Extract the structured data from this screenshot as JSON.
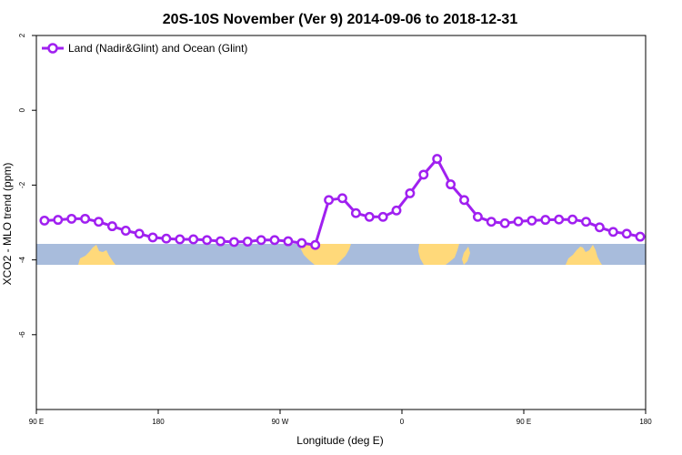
{
  "chart_data": {
    "type": "line",
    "title": "20S-10S November (Ver 9)   2014-09-06 to 2018-12-31",
    "xlabel": "Longitude (deg E)",
    "ylabel": "XCO2 - MLO trend (ppm)",
    "xlim": [
      90,
      540
    ],
    "ylim": [
      -8,
      2
    ],
    "x_ticks": [
      {
        "value": 90,
        "label": "90 E"
      },
      {
        "value": 180,
        "label": "180"
      },
      {
        "value": 270,
        "label": "90 W"
      },
      {
        "value": 360,
        "label": "0"
      },
      {
        "value": 450,
        "label": "90 E"
      },
      {
        "value": 540,
        "label": "180"
      }
    ],
    "y_ticks": [
      {
        "value": 2,
        "label": "2"
      },
      {
        "value": 0,
        "label": "0"
      },
      {
        "value": -2,
        "label": "-2"
      },
      {
        "value": -4,
        "label": "-4"
      },
      {
        "value": -6,
        "label": "-6"
      }
    ],
    "legend": {
      "position": "top-left"
    },
    "series": [
      {
        "name": "Land (Nadir&Glint) and Ocean (Glint)",
        "color": "#a020f0",
        "marker": "open-circle",
        "x": [
          96,
          106,
          116,
          126,
          136,
          146,
          156,
          166,
          176,
          186,
          196,
          206,
          216,
          226,
          236,
          246,
          256,
          266,
          276,
          286,
          296,
          306,
          316,
          326,
          336,
          346,
          356,
          366,
          376,
          386,
          396,
          406,
          416,
          426,
          436,
          446,
          456,
          466,
          476,
          486,
          496,
          506,
          516,
          526,
          536
        ],
        "values": [
          -2.95,
          -2.93,
          -2.9,
          -2.9,
          -2.98,
          -3.1,
          -3.22,
          -3.3,
          -3.4,
          -3.43,
          -3.45,
          -3.45,
          -3.47,
          -3.5,
          -3.52,
          -3.51,
          -3.47,
          -3.47,
          -3.5,
          -3.55,
          -3.6,
          -2.4,
          -2.35,
          -2.75,
          -2.85,
          -2.85,
          -2.68,
          -2.22,
          -1.72,
          -1.3,
          -1.98,
          -2.4,
          -2.85,
          -2.98,
          -3.02,
          -2.97,
          -2.95,
          -2.93,
          -2.92,
          -2.92,
          -2.98,
          -3.13,
          -3.25,
          -3.3,
          -3.38
        ]
      }
    ]
  },
  "map_strip": {
    "ocean_color": "#a8bcdc",
    "land_color": "#ffd97a",
    "lat_range": "20S-10S"
  }
}
